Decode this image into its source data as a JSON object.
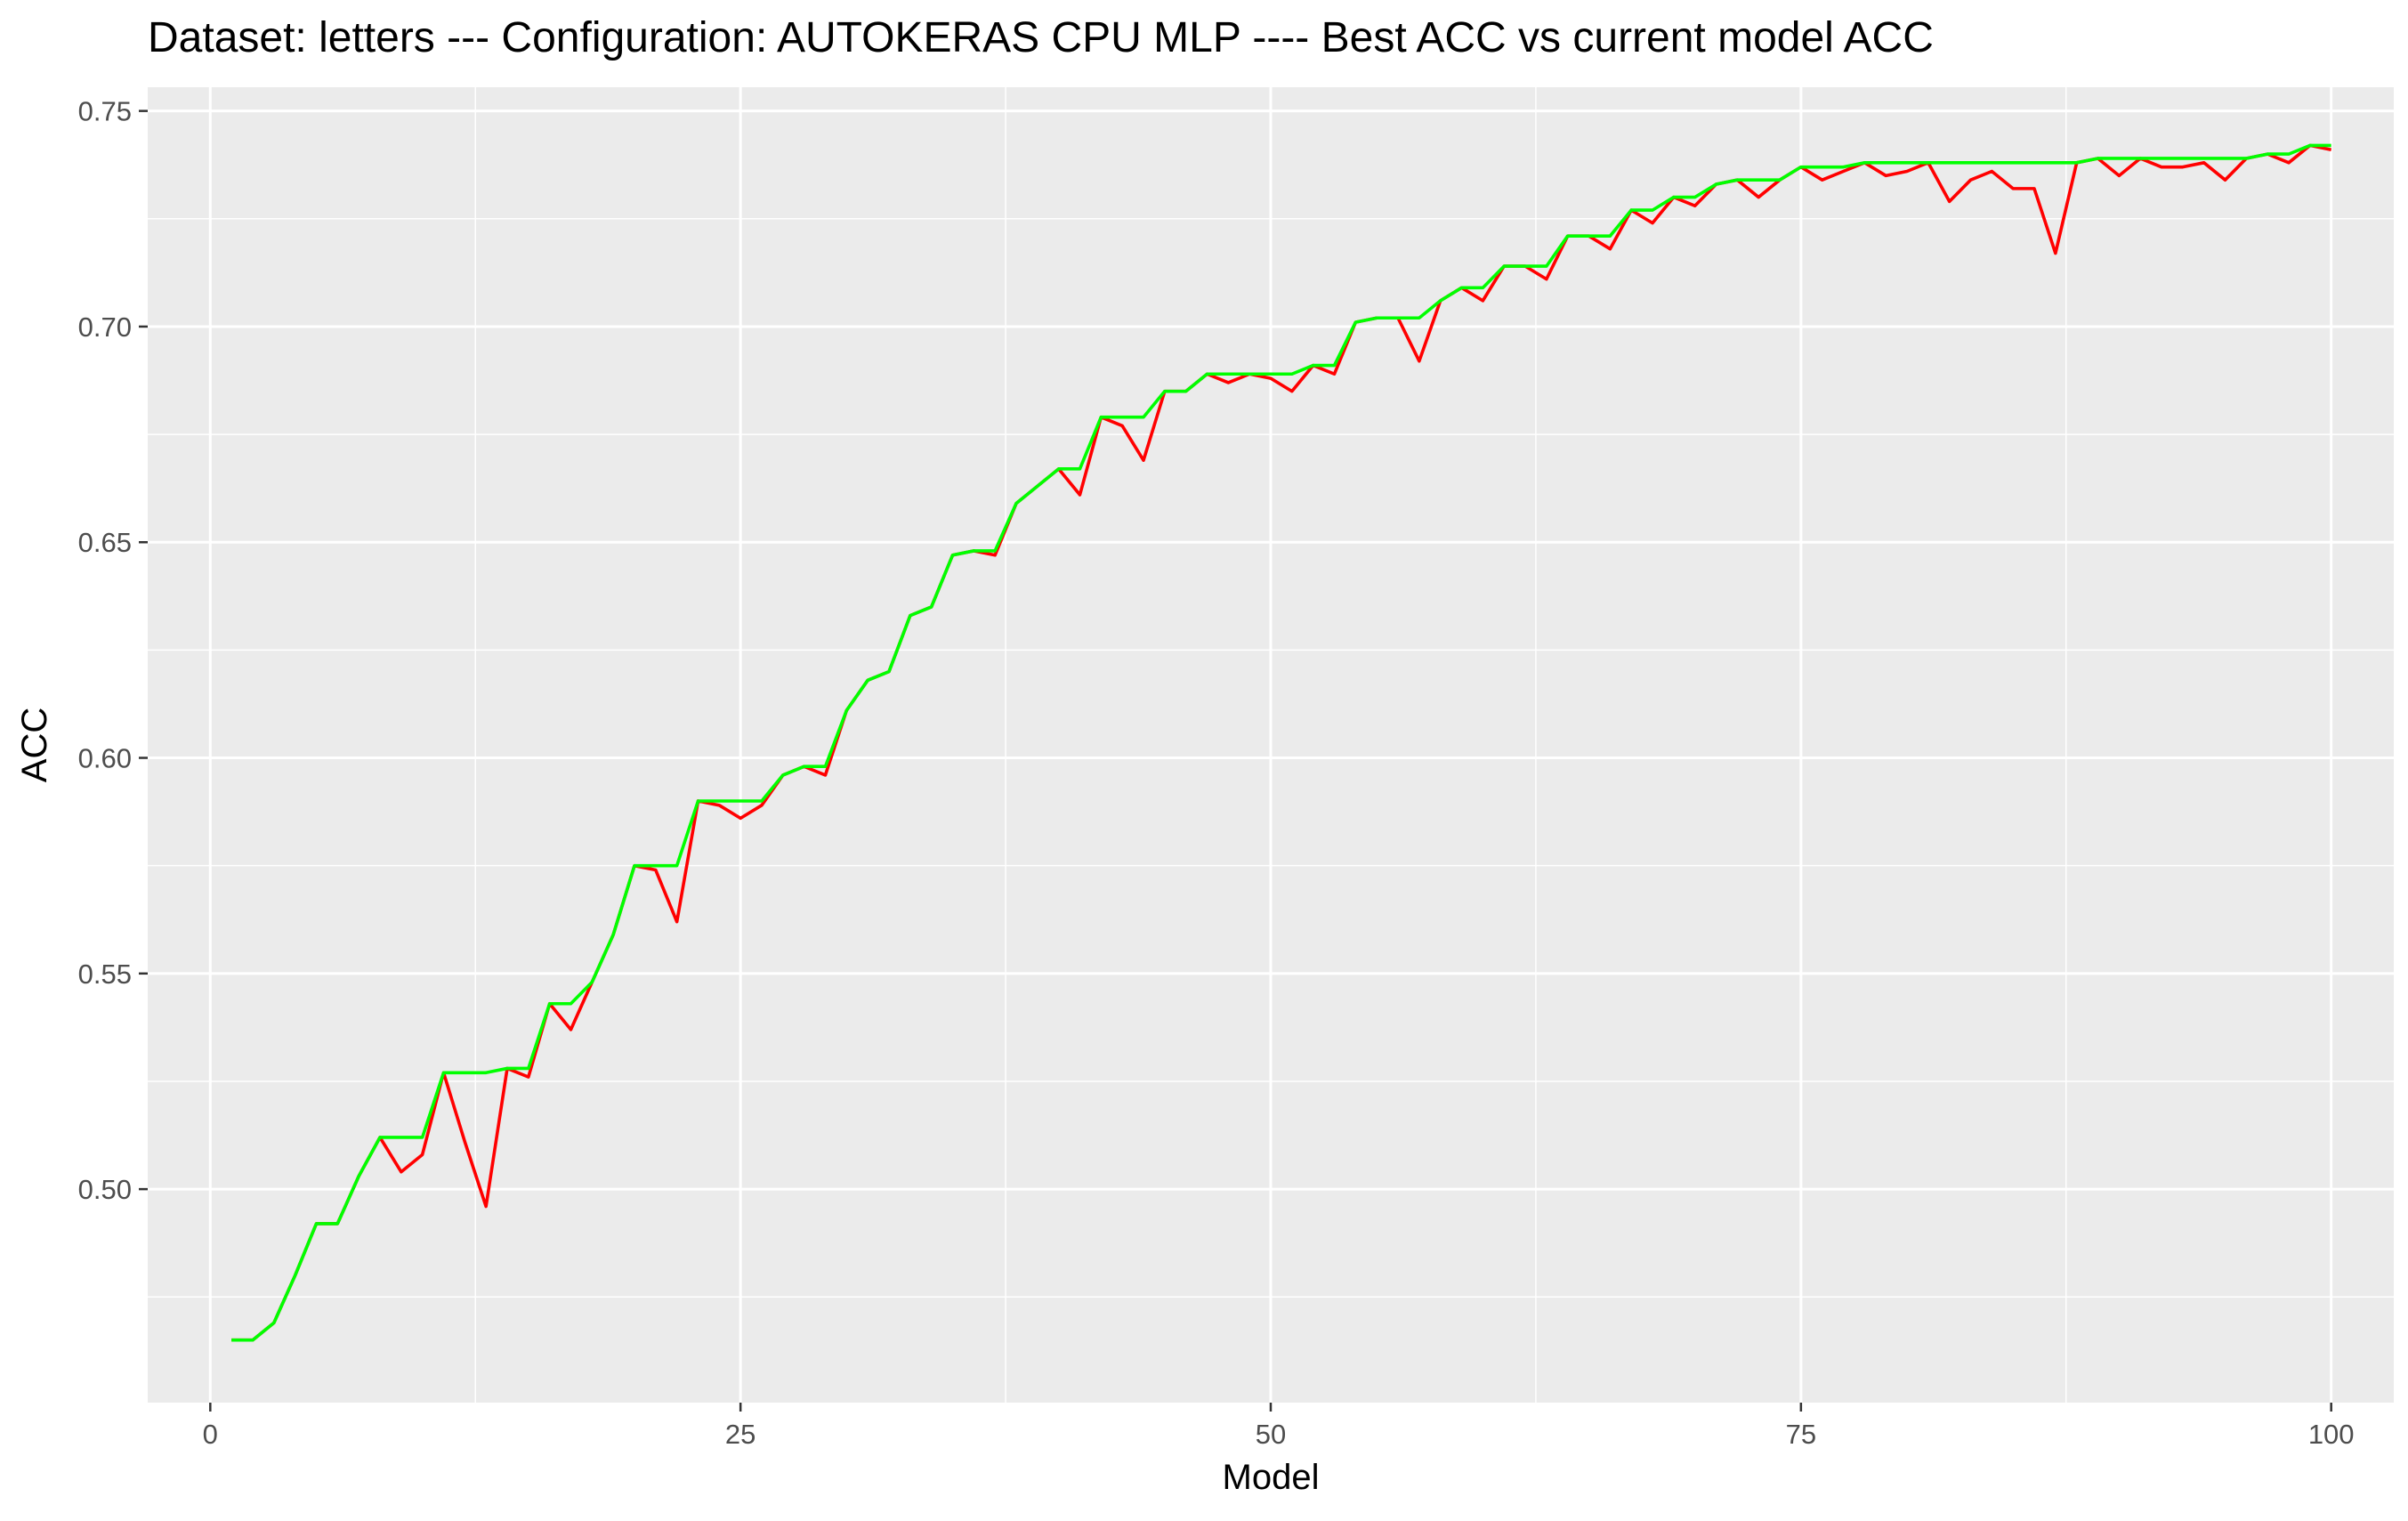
{
  "chart_data": {
    "type": "line",
    "title": "Dataset:  letters  --- Configuration:  AUTOKERAS CPU MLP  ---- Best ACC vs current model ACC",
    "xlabel": "Model",
    "ylabel": "ACC",
    "xlim": [
      -2.95,
      102.95
    ],
    "ylim": [
      0.4505,
      0.7555
    ],
    "x_ticks": [
      0,
      25,
      50,
      75,
      100
    ],
    "x_tick_labels": [
      "0",
      "25",
      "50",
      "75",
      "100"
    ],
    "y_ticks": [
      0.5,
      0.55,
      0.6,
      0.65,
      0.7,
      0.75
    ],
    "y_tick_labels": [
      "0.50",
      "0.55",
      "0.60",
      "0.65",
      "0.70",
      "0.75"
    ],
    "grid": true,
    "legend": "none",
    "x": [
      1,
      2,
      3,
      4,
      5,
      6,
      7,
      8,
      9,
      10,
      11,
      12,
      13,
      14,
      15,
      16,
      17,
      18,
      19,
      20,
      21,
      22,
      23,
      24,
      25,
      26,
      27,
      28,
      29,
      30,
      31,
      32,
      33,
      34,
      35,
      36,
      37,
      38,
      39,
      40,
      41,
      42,
      43,
      44,
      45,
      46,
      47,
      48,
      49,
      50,
      51,
      52,
      53,
      54,
      55,
      56,
      57,
      58,
      59,
      60,
      61,
      62,
      63,
      64,
      65,
      66,
      67,
      68,
      69,
      70,
      71,
      72,
      73,
      74,
      75,
      76,
      77,
      78,
      79,
      80,
      81,
      82,
      83,
      84,
      85,
      86,
      87,
      88,
      89,
      90,
      91,
      92,
      93,
      94,
      95,
      96,
      97,
      98,
      99,
      100
    ],
    "series": [
      {
        "color": "#ff0000",
        "values": [
          0.465,
          0.465,
          0.469,
          0.48,
          0.492,
          0.492,
          0.503,
          0.512,
          0.504,
          0.508,
          0.527,
          0.511,
          0.496,
          0.528,
          0.526,
          0.543,
          0.537,
          0.548,
          0.559,
          0.575,
          0.574,
          0.562,
          0.59,
          0.589,
          0.586,
          0.589,
          0.596,
          0.598,
          0.596,
          0.611,
          0.618,
          0.62,
          0.633,
          0.635,
          0.647,
          0.648,
          0.647,
          0.659,
          0.663,
          0.667,
          0.661,
          0.679,
          0.677,
          0.669,
          0.685,
          0.685,
          0.689,
          0.687,
          0.689,
          0.688,
          0.685,
          0.691,
          0.689,
          0.701,
          0.702,
          0.702,
          0.692,
          0.706,
          0.709,
          0.706,
          0.714,
          0.714,
          0.711,
          0.721,
          0.721,
          0.718,
          0.727,
          0.724,
          0.73,
          0.728,
          0.733,
          0.734,
          0.73,
          0.734,
          0.737,
          0.734,
          0.736,
          0.738,
          0.735,
          0.736,
          0.738,
          0.729,
          0.734,
          0.736,
          0.732,
          0.732,
          0.717,
          0.738,
          0.739,
          0.735,
          0.739,
          0.737,
          0.737,
          0.738,
          0.734,
          0.739,
          0.74,
          0.738,
          0.742,
          0.741
        ]
      },
      {
        "color": "#00ff00",
        "values": [
          0.465,
          0.465,
          0.469,
          0.48,
          0.492,
          0.492,
          0.503,
          0.512,
          0.512,
          0.512,
          0.527,
          0.527,
          0.527,
          0.528,
          0.528,
          0.543,
          0.543,
          0.548,
          0.559,
          0.575,
          0.575,
          0.575,
          0.59,
          0.59,
          0.59,
          0.59,
          0.596,
          0.598,
          0.598,
          0.611,
          0.618,
          0.62,
          0.633,
          0.635,
          0.647,
          0.648,
          0.648,
          0.659,
          0.663,
          0.667,
          0.667,
          0.679,
          0.679,
          0.679,
          0.685,
          0.685,
          0.689,
          0.689,
          0.689,
          0.689,
          0.689,
          0.691,
          0.691,
          0.701,
          0.702,
          0.702,
          0.702,
          0.706,
          0.709,
          0.709,
          0.714,
          0.714,
          0.714,
          0.721,
          0.721,
          0.721,
          0.727,
          0.727,
          0.73,
          0.73,
          0.733,
          0.734,
          0.734,
          0.734,
          0.737,
          0.737,
          0.737,
          0.738,
          0.738,
          0.738,
          0.738,
          0.738,
          0.738,
          0.738,
          0.738,
          0.738,
          0.738,
          0.738,
          0.739,
          0.739,
          0.739,
          0.739,
          0.739,
          0.739,
          0.739,
          0.739,
          0.74,
          0.74,
          0.742,
          0.742
        ]
      }
    ]
  }
}
